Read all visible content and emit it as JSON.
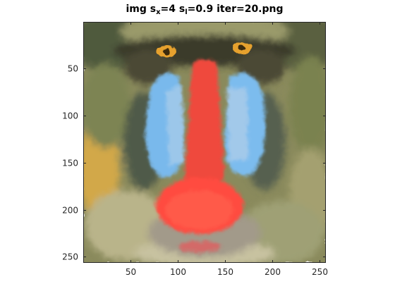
{
  "figure": {
    "title": {
      "prefix": "img s",
      "sub1": "x",
      "mid": "=4 s",
      "sub2": "l",
      "suffix": "=0.9 iter=20.png"
    }
  },
  "axes": {
    "x_range": [
      0.5,
      256.5
    ],
    "y_range": [
      0.5,
      256.5
    ],
    "y_direction": "reversed",
    "x_ticks": [
      50,
      100,
      150,
      200,
      250
    ],
    "y_ticks": [
      50,
      100,
      150,
      200,
      250
    ],
    "box_color": "#262626"
  },
  "image": {
    "subject": "mandrill face, posterized / segmented",
    "colors": {
      "fur_green": "#7d8453",
      "fur_olive": "#9a9a63",
      "fur_yellow": "#d2a84a",
      "nose_red": "#ff4b3f",
      "cheek_blue": "#79b9ec",
      "dark": "#2e2f27",
      "eye_orange": "#e6a12e"
    }
  }
}
